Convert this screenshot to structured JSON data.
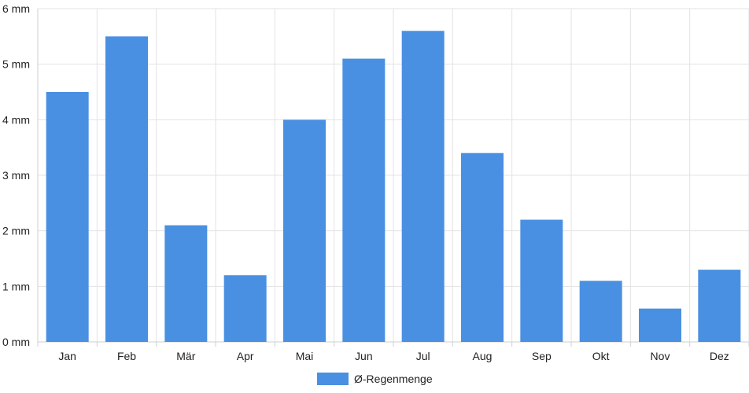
{
  "colors": {
    "bar": "#4a90e2",
    "grid": "#e3e3e3",
    "axis": "#cfcfcf",
    "text": "#222222"
  },
  "chart_data": {
    "type": "bar",
    "categories": [
      "Jan",
      "Feb",
      "Mär",
      "Apr",
      "Mai",
      "Jun",
      "Jul",
      "Aug",
      "Sep",
      "Okt",
      "Nov",
      "Dez"
    ],
    "series": [
      {
        "name": "Ø-Regenmenge",
        "values": [
          4.5,
          5.5,
          2.1,
          1.2,
          4.0,
          5.1,
          5.6,
          3.4,
          2.2,
          1.1,
          0.6,
          1.3
        ]
      }
    ],
    "y_ticks": [
      "0 mm",
      "1 mm",
      "2 mm",
      "3 mm",
      "4 mm",
      "5 mm",
      "6 mm"
    ],
    "ylim": [
      0,
      6
    ],
    "grid": true,
    "legend": "bottom-center"
  }
}
